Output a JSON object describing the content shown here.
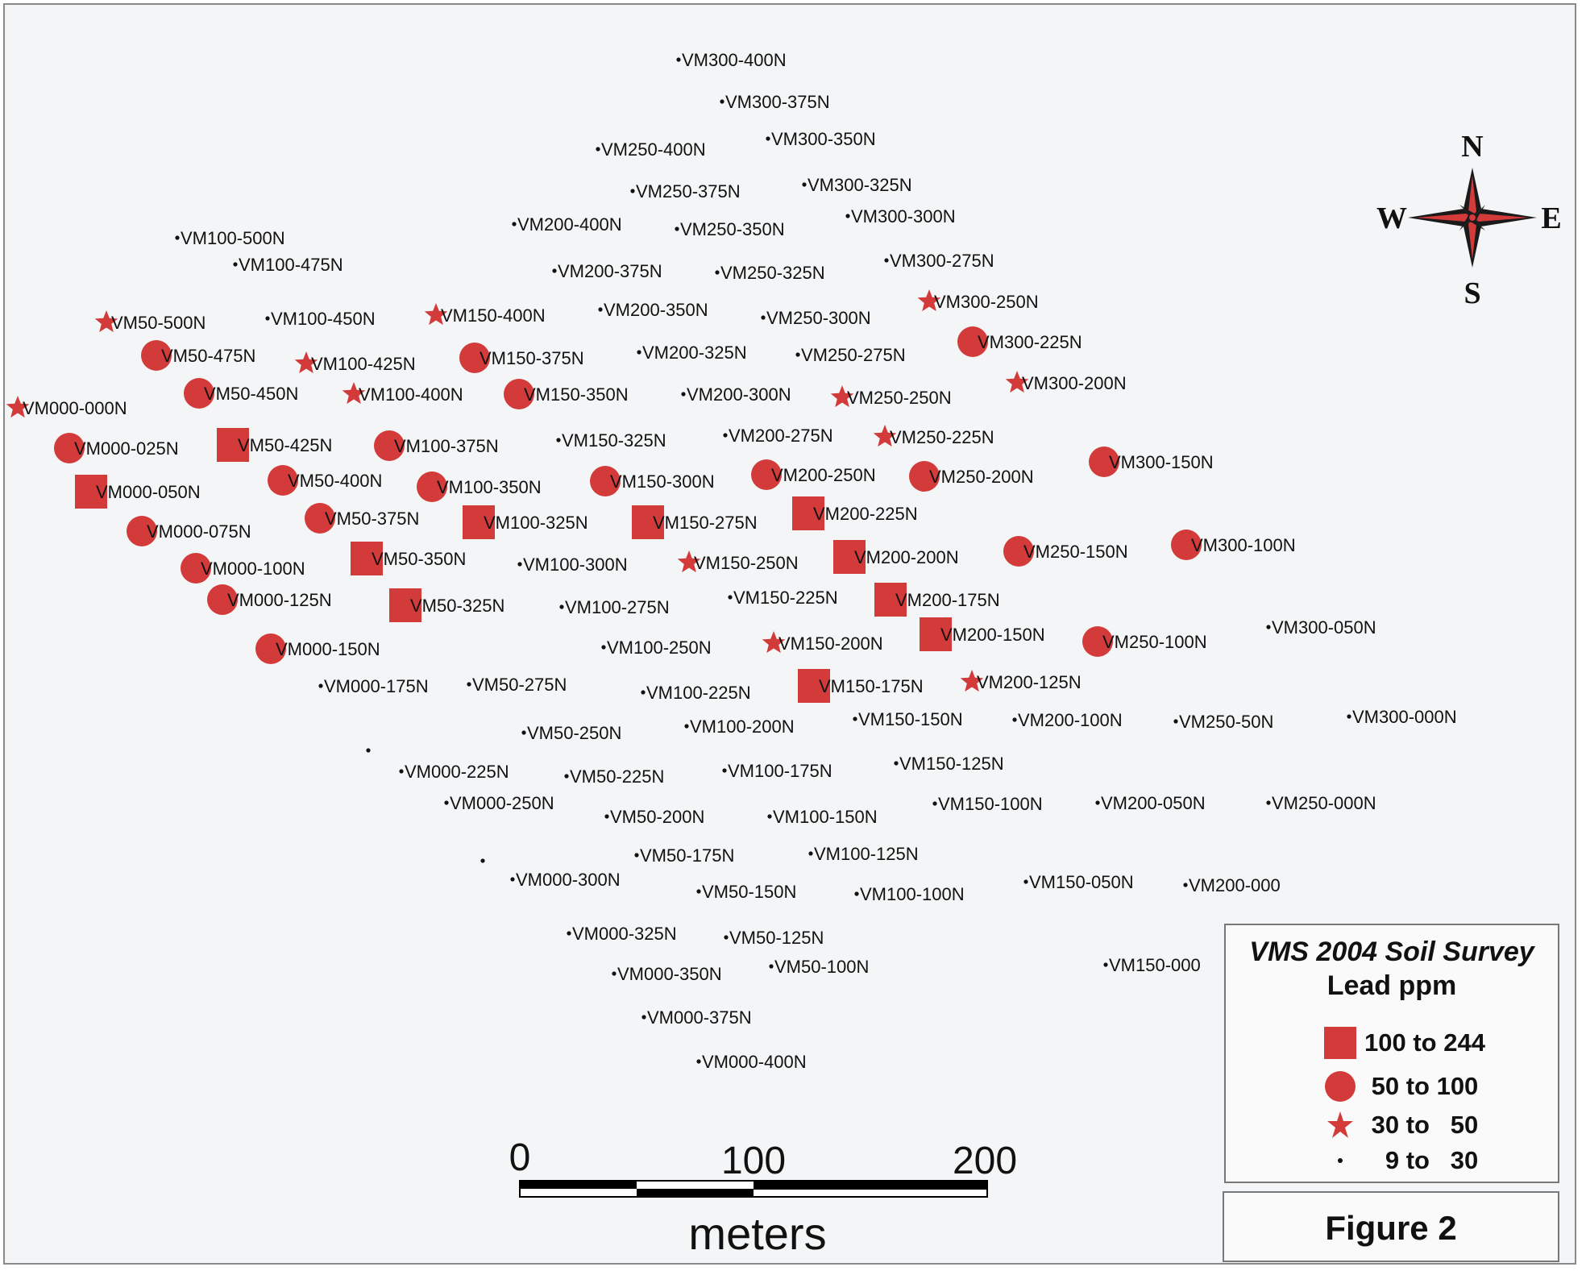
{
  "map": {
    "symbol_color": "#d33a3a",
    "samples": [
      {
        "label": "VM300-400N",
        "sym": "dot"
      },
      {
        "label": "VM300-375N",
        "sym": "dot"
      },
      {
        "label": "VM300-350N",
        "sym": "dot"
      },
      {
        "label": "VM250-400N",
        "sym": "dot"
      },
      {
        "label": "VM250-375N",
        "sym": "dot"
      },
      {
        "label": "VM300-325N",
        "sym": "dot"
      },
      {
        "label": "VM200-400N",
        "sym": "dot"
      },
      {
        "label": "VM250-350N",
        "sym": "dot"
      },
      {
        "label": "VM300-300N",
        "sym": "dot"
      },
      {
        "label": "VM100-500N",
        "sym": "dot"
      },
      {
        "label": "VM100-475N",
        "sym": "dot"
      },
      {
        "label": "VM200-375N",
        "sym": "dot"
      },
      {
        "label": "VM250-325N",
        "sym": "dot"
      },
      {
        "label": "VM300-275N",
        "sym": "dot"
      },
      {
        "label": "VM50-500N",
        "sym": "star"
      },
      {
        "label": "VM100-450N",
        "sym": "dot"
      },
      {
        "label": "VM150-400N",
        "sym": "star"
      },
      {
        "label": "VM200-350N",
        "sym": "dot"
      },
      {
        "label": "VM250-300N",
        "sym": "dot"
      },
      {
        "label": "VM300-250N",
        "sym": "star"
      },
      {
        "label": "VM50-475N",
        "sym": "circle"
      },
      {
        "label": "VM100-425N",
        "sym": "star"
      },
      {
        "label": "VM150-375N",
        "sym": "circle"
      },
      {
        "label": "VM200-325N",
        "sym": "dot"
      },
      {
        "label": "VM250-275N",
        "sym": "dot"
      },
      {
        "label": "VM300-225N",
        "sym": "circle"
      },
      {
        "label": "VM000-000N",
        "sym": "star"
      },
      {
        "label": "VM50-450N",
        "sym": "circle"
      },
      {
        "label": "VM100-400N",
        "sym": "star"
      },
      {
        "label": "VM150-350N",
        "sym": "circle"
      },
      {
        "label": "VM200-300N",
        "sym": "dot"
      },
      {
        "label": "VM250-250N",
        "sym": "star"
      },
      {
        "label": "VM300-200N",
        "sym": "star"
      },
      {
        "label": "VM000-025N",
        "sym": "circle"
      },
      {
        "label": "VM50-425N",
        "sym": "square"
      },
      {
        "label": "VM100-375N",
        "sym": "circle"
      },
      {
        "label": "VM150-325N",
        "sym": "dot"
      },
      {
        "label": "VM200-275N",
        "sym": "dot"
      },
      {
        "label": "VM250-225N",
        "sym": "star"
      },
      {
        "label": "VM000-050N",
        "sym": "square"
      },
      {
        "label": "VM50-400N",
        "sym": "circle"
      },
      {
        "label": "VM100-350N",
        "sym": "circle"
      },
      {
        "label": "VM150-300N",
        "sym": "circle"
      },
      {
        "label": "VM200-250N",
        "sym": "circle"
      },
      {
        "label": "VM250-200N",
        "sym": "circle"
      },
      {
        "label": "VM300-150N",
        "sym": "circle"
      },
      {
        "label": "VM000-075N",
        "sym": "circle"
      },
      {
        "label": "VM50-375N",
        "sym": "circle"
      },
      {
        "label": "VM100-325N",
        "sym": "square"
      },
      {
        "label": "VM150-275N",
        "sym": "square"
      },
      {
        "label": "VM200-225N",
        "sym": "square"
      },
      {
        "label": "VM000-100N",
        "sym": "circle"
      },
      {
        "label": "VM50-350N",
        "sym": "square"
      },
      {
        "label": "VM100-300N",
        "sym": "dot"
      },
      {
        "label": "VM150-250N",
        "sym": "star"
      },
      {
        "label": "VM200-200N",
        "sym": "square"
      },
      {
        "label": "VM250-150N",
        "sym": "circle"
      },
      {
        "label": "VM300-100N",
        "sym": "circle"
      },
      {
        "label": "VM000-125N",
        "sym": "circle"
      },
      {
        "label": "VM50-325N",
        "sym": "square"
      },
      {
        "label": "VM100-275N",
        "sym": "dot"
      },
      {
        "label": "VM150-225N",
        "sym": "dot"
      },
      {
        "label": "VM200-175N",
        "sym": "square"
      },
      {
        "label": "VM000-150N",
        "sym": "circle"
      },
      {
        "label": "VM100-250N",
        "sym": "dot"
      },
      {
        "label": "VM150-200N",
        "sym": "star"
      },
      {
        "label": "VM200-150N",
        "sym": "square"
      },
      {
        "label": "VM250-100N",
        "sym": "circle"
      },
      {
        "label": "VM300-050N",
        "sym": "dot"
      },
      {
        "label": "VM000-175N",
        "sym": "dot"
      },
      {
        "label": "VM50-275N",
        "sym": "dot"
      },
      {
        "label": "VM100-225N",
        "sym": "dot"
      },
      {
        "label": "VM150-175N",
        "sym": "square"
      },
      {
        "label": "VM200-125N",
        "sym": "star"
      },
      {
        "label": "VM50-250N",
        "sym": "dot"
      },
      {
        "label": "VM100-200N",
        "sym": "dot"
      },
      {
        "label": "VM150-150N",
        "sym": "dot"
      },
      {
        "label": "VM200-100N",
        "sym": "dot"
      },
      {
        "label": "VM250-50N",
        "sym": "dot"
      },
      {
        "label": "VM300-000N",
        "sym": "dot"
      },
      {
        "label": "",
        "sym": "dot"
      },
      {
        "label": "VM000-225N",
        "sym": "dot"
      },
      {
        "label": "VM50-225N",
        "sym": "dot"
      },
      {
        "label": "VM100-175N",
        "sym": "dot"
      },
      {
        "label": "VM150-125N",
        "sym": "dot"
      },
      {
        "label": "VM000-250N",
        "sym": "dot"
      },
      {
        "label": "VM50-200N",
        "sym": "dot"
      },
      {
        "label": "VM100-150N",
        "sym": "dot"
      },
      {
        "label": "VM150-100N",
        "sym": "dot"
      },
      {
        "label": "VM200-050N",
        "sym": "dot"
      },
      {
        "label": "VM250-000N",
        "sym": "dot"
      },
      {
        "label": "VM50-175N",
        "sym": "dot"
      },
      {
        "label": "VM100-125N",
        "sym": "dot"
      },
      {
        "label": "",
        "sym": "dot"
      },
      {
        "label": "VM000-300N",
        "sym": "dot"
      },
      {
        "label": "VM50-150N",
        "sym": "dot"
      },
      {
        "label": "VM100-100N",
        "sym": "dot"
      },
      {
        "label": "VM150-050N",
        "sym": "dot"
      },
      {
        "label": "VM200-000",
        "sym": "dot"
      },
      {
        "label": "VM000-325N",
        "sym": "dot"
      },
      {
        "label": "VM50-125N",
        "sym": "dot"
      },
      {
        "label": "VM000-350N",
        "sym": "dot"
      },
      {
        "label": "VM50-100N",
        "sym": "dot"
      },
      {
        "label": "VM150-000",
        "sym": "dot"
      },
      {
        "label": "VM000-375N",
        "sym": "dot"
      },
      {
        "label": "VM000-400N",
        "sym": "dot"
      }
    ]
  },
  "compass": {
    "north": "N",
    "south": "S",
    "east": "E",
    "west": "W",
    "icon": "compass-rose-icon"
  },
  "scale_bar": {
    "ticks": [
      "0",
      "100",
      "200"
    ],
    "unit": "meters"
  },
  "legend": {
    "title_line1": "VMS 2004 Soil Survey",
    "title_line2": "Lead ppm",
    "items": [
      {
        "symbol": "square",
        "label": "100 to 244"
      },
      {
        "symbol": "circle",
        "label": " 50 to 100"
      },
      {
        "symbol": "star",
        "label": " 30 to   50"
      },
      {
        "symbol": "dot",
        "label": "   9 to   30"
      }
    ]
  },
  "figure_label": "Figure 2"
}
